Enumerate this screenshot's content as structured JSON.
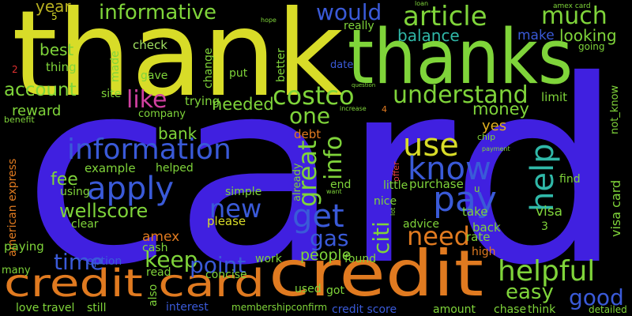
{
  "words": [
    "card",
    "thank",
    "thanks",
    "credit",
    "credit card",
    "year",
    "informative",
    "would",
    "article",
    "much",
    "best",
    "thing",
    "check",
    "balance",
    "make",
    "looking",
    "going",
    "understand",
    "costco",
    "like",
    "account",
    "reward",
    "trying",
    "needed",
    "one",
    "money",
    "limit",
    "information",
    "apply",
    "use",
    "know",
    "pay",
    "help",
    "great",
    "info",
    "get",
    "gas",
    "need",
    "new",
    "wellscore",
    "fee",
    "example",
    "time",
    "keep",
    "point",
    "helpful",
    "good",
    "easy",
    "citi",
    "visa",
    "visa card",
    "amex",
    "cash",
    "please",
    "people",
    "found",
    "rate",
    "back",
    "take",
    "yes",
    "bank",
    "debt",
    "american express",
    "paying",
    "many",
    "love travel",
    "still",
    "interest",
    "membershipconfirm",
    "credit score",
    "amount",
    "chase",
    "think",
    "detailed",
    "used",
    "got",
    "concise",
    "read",
    "option",
    "work",
    "high",
    "advice",
    "little",
    "purchase",
    "nice",
    "end",
    "simple",
    "helped",
    "using",
    "clear",
    "find",
    "company",
    "site",
    "put",
    "gave",
    "made",
    "change",
    "better",
    "really",
    "date",
    "not_know",
    "benefit",
    "5",
    "2",
    "3",
    "4",
    "u",
    "offer",
    "chip",
    "already",
    "also",
    "hope",
    "loan",
    "amex card",
    "question",
    "increase",
    "payment",
    "lot",
    "want"
  ]
}
